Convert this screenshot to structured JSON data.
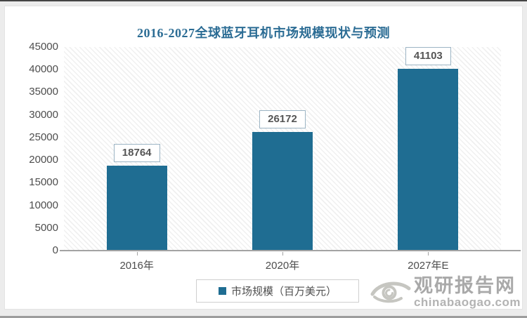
{
  "chart_data": {
    "type": "bar",
    "title": "2016-2027全球蓝牙耳机市场规模现状与预测",
    "categories": [
      "2016年",
      "2020年",
      "2027年E"
    ],
    "values": [
      18764,
      26172,
      41103
    ],
    "series_name": "市场规模（百万美元）",
    "ylim": [
      0,
      45000
    ],
    "ytick_step": 5000,
    "grid": false,
    "legend_position": "bottom",
    "data_labels": [
      18764,
      26172,
      41103
    ],
    "bar_color": "#1f6d92"
  },
  "legend": {
    "label": "市场规模（百万美元）",
    "swatch_color": "#1f6d92"
  },
  "watermark": {
    "name": "观研报告网",
    "domain": "chinabaogao.com"
  },
  "colors": {
    "title_text": "#2b6c94",
    "axis_text": "#4d4d4d",
    "value_box_border": "#9cb4c4",
    "axis_line": "#a3a3a3"
  }
}
